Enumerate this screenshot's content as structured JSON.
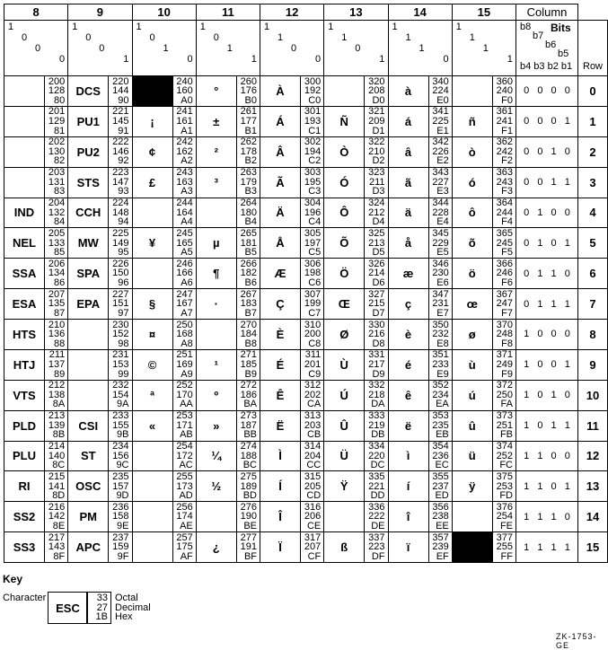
{
  "header": {
    "column_label": "Column",
    "bits_label": "Bits",
    "bit_names": [
      "b8",
      "b7",
      "b6",
      "b5"
    ],
    "low_bit_names": "b4 b3 b2 b1",
    "row_label": "Row"
  },
  "columns": [
    {
      "number": "8",
      "bits": [
        "1",
        "0",
        "0",
        "0"
      ],
      "cells": [
        {
          "c": "",
          "o": "200",
          "d": "128",
          "h": "80"
        },
        {
          "c": "",
          "o": "201",
          "d": "129",
          "h": "81"
        },
        {
          "c": "",
          "o": "202",
          "d": "130",
          "h": "82"
        },
        {
          "c": "",
          "o": "203",
          "d": "131",
          "h": "83"
        },
        {
          "c": "IND",
          "o": "204",
          "d": "132",
          "h": "84"
        },
        {
          "c": "NEL",
          "o": "205",
          "d": "133",
          "h": "85"
        },
        {
          "c": "SSA",
          "o": "206",
          "d": "134",
          "h": "86"
        },
        {
          "c": "ESA",
          "o": "207",
          "d": "135",
          "h": "87"
        },
        {
          "c": "HTS",
          "o": "210",
          "d": "136",
          "h": "88"
        },
        {
          "c": "HTJ",
          "o": "211",
          "d": "137",
          "h": "89"
        },
        {
          "c": "VTS",
          "o": "212",
          "d": "138",
          "h": "8A"
        },
        {
          "c": "PLD",
          "o": "213",
          "d": "139",
          "h": "8B"
        },
        {
          "c": "PLU",
          "o": "214",
          "d": "140",
          "h": "8C"
        },
        {
          "c": "RI",
          "o": "215",
          "d": "141",
          "h": "8D"
        },
        {
          "c": "SS2",
          "o": "216",
          "d": "142",
          "h": "8E"
        },
        {
          "c": "SS3",
          "o": "217",
          "d": "143",
          "h": "8F"
        }
      ]
    },
    {
      "number": "9",
      "bits": [
        "1",
        "0",
        "0",
        "1"
      ],
      "cells": [
        {
          "c": "DCS",
          "o": "220",
          "d": "144",
          "h": "90"
        },
        {
          "c": "PU1",
          "o": "221",
          "d": "145",
          "h": "91"
        },
        {
          "c": "PU2",
          "o": "222",
          "d": "146",
          "h": "92"
        },
        {
          "c": "STS",
          "o": "223",
          "d": "147",
          "h": "93"
        },
        {
          "c": "CCH",
          "o": "224",
          "d": "148",
          "h": "94"
        },
        {
          "c": "MW",
          "o": "225",
          "d": "149",
          "h": "95"
        },
        {
          "c": "SPA",
          "o": "226",
          "d": "150",
          "h": "96"
        },
        {
          "c": "EPA",
          "o": "227",
          "d": "151",
          "h": "97"
        },
        {
          "c": "",
          "o": "230",
          "d": "152",
          "h": "98"
        },
        {
          "c": "",
          "o": "231",
          "d": "153",
          "h": "99"
        },
        {
          "c": "",
          "o": "232",
          "d": "154",
          "h": "9A"
        },
        {
          "c": "CSI",
          "o": "233",
          "d": "155",
          "h": "9B"
        },
        {
          "c": "ST",
          "o": "234",
          "d": "156",
          "h": "9C"
        },
        {
          "c": "OSC",
          "o": "235",
          "d": "157",
          "h": "9D"
        },
        {
          "c": "PM",
          "o": "236",
          "d": "158",
          "h": "9E"
        },
        {
          "c": "APC",
          "o": "237",
          "d": "159",
          "h": "9F"
        }
      ]
    },
    {
      "number": "10",
      "bits": [
        "1",
        "0",
        "1",
        "0"
      ],
      "cells": [
        {
          "c": "",
          "o": "240",
          "d": "160",
          "h": "A0",
          "black": true
        },
        {
          "c": "¡",
          "o": "241",
          "d": "161",
          "h": "A1"
        },
        {
          "c": "¢",
          "o": "242",
          "d": "162",
          "h": "A2"
        },
        {
          "c": "£",
          "o": "243",
          "d": "163",
          "h": "A3"
        },
        {
          "c": "",
          "o": "244",
          "d": "164",
          "h": "A4"
        },
        {
          "c": "¥",
          "o": "245",
          "d": "165",
          "h": "A5"
        },
        {
          "c": "",
          "o": "246",
          "d": "166",
          "h": "A6"
        },
        {
          "c": "§",
          "o": "247",
          "d": "167",
          "h": "A7"
        },
        {
          "c": "¤",
          "o": "250",
          "d": "168",
          "h": "A8"
        },
        {
          "c": "©",
          "o": "251",
          "d": "169",
          "h": "A9"
        },
        {
          "c": "ª",
          "o": "252",
          "d": "170",
          "h": "AA"
        },
        {
          "c": "«",
          "o": "253",
          "d": "171",
          "h": "AB"
        },
        {
          "c": "",
          "o": "254",
          "d": "172",
          "h": "AC"
        },
        {
          "c": "",
          "o": "255",
          "d": "173",
          "h": "AD"
        },
        {
          "c": "",
          "o": "256",
          "d": "174",
          "h": "AE"
        },
        {
          "c": "",
          "o": "257",
          "d": "175",
          "h": "AF"
        }
      ]
    },
    {
      "number": "11",
      "bits": [
        "1",
        "0",
        "1",
        "1"
      ],
      "cells": [
        {
          "c": "°",
          "o": "260",
          "d": "176",
          "h": "B0"
        },
        {
          "c": "±",
          "o": "261",
          "d": "177",
          "h": "B1"
        },
        {
          "c": "²",
          "o": "262",
          "d": "178",
          "h": "B2"
        },
        {
          "c": "³",
          "o": "263",
          "d": "179",
          "h": "B3"
        },
        {
          "c": "",
          "o": "264",
          "d": "180",
          "h": "B4"
        },
        {
          "c": "µ",
          "o": "265",
          "d": "181",
          "h": "B5"
        },
        {
          "c": "¶",
          "o": "266",
          "d": "182",
          "h": "B6"
        },
        {
          "c": "·",
          "o": "267",
          "d": "183",
          "h": "B7"
        },
        {
          "c": "",
          "o": "270",
          "d": "184",
          "h": "B8"
        },
        {
          "c": "¹",
          "o": "271",
          "d": "185",
          "h": "B9"
        },
        {
          "c": "º",
          "o": "272",
          "d": "186",
          "h": "BA"
        },
        {
          "c": "»",
          "o": "273",
          "d": "187",
          "h": "BB"
        },
        {
          "c": "¼",
          "o": "274",
          "d": "188",
          "h": "BC"
        },
        {
          "c": "½",
          "o": "275",
          "d": "189",
          "h": "BD"
        },
        {
          "c": "",
          "o": "276",
          "d": "190",
          "h": "BE"
        },
        {
          "c": "¿",
          "o": "277",
          "d": "191",
          "h": "BF"
        }
      ]
    },
    {
      "number": "12",
      "bits": [
        "1",
        "1",
        "0",
        "0"
      ],
      "cells": [
        {
          "c": "À",
          "o": "300",
          "d": "192",
          "h": "C0"
        },
        {
          "c": "Á",
          "o": "301",
          "d": "193",
          "h": "C1"
        },
        {
          "c": "Â",
          "o": "302",
          "d": "194",
          "h": "C2"
        },
        {
          "c": "Ã",
          "o": "303",
          "d": "195",
          "h": "C3"
        },
        {
          "c": "Ä",
          "o": "304",
          "d": "196",
          "h": "C4"
        },
        {
          "c": "Å",
          "o": "305",
          "d": "197",
          "h": "C5"
        },
        {
          "c": "Æ",
          "o": "306",
          "d": "198",
          "h": "C6"
        },
        {
          "c": "Ç",
          "o": "307",
          "d": "199",
          "h": "C7"
        },
        {
          "c": "È",
          "o": "310",
          "d": "200",
          "h": "C8"
        },
        {
          "c": "É",
          "o": "311",
          "d": "201",
          "h": "C9"
        },
        {
          "c": "Ê",
          "o": "312",
          "d": "202",
          "h": "CA"
        },
        {
          "c": "Ë",
          "o": "313",
          "d": "203",
          "h": "CB"
        },
        {
          "c": "Ì",
          "o": "314",
          "d": "204",
          "h": "CC"
        },
        {
          "c": "Í",
          "o": "315",
          "d": "205",
          "h": "CD"
        },
        {
          "c": "Î",
          "o": "316",
          "d": "206",
          "h": "CE"
        },
        {
          "c": "Ï",
          "o": "317",
          "d": "207",
          "h": "CF"
        }
      ]
    },
    {
      "number": "13",
      "bits": [
        "1",
        "1",
        "0",
        "1"
      ],
      "cells": [
        {
          "c": "",
          "o": "320",
          "d": "208",
          "h": "D0"
        },
        {
          "c": "Ñ",
          "o": "321",
          "d": "209",
          "h": "D1"
        },
        {
          "c": "Ò",
          "o": "322",
          "d": "210",
          "h": "D2"
        },
        {
          "c": "Ó",
          "o": "323",
          "d": "211",
          "h": "D3"
        },
        {
          "c": "Ô",
          "o": "324",
          "d": "212",
          "h": "D4"
        },
        {
          "c": "Õ",
          "o": "325",
          "d": "213",
          "h": "D5"
        },
        {
          "c": "Ö",
          "o": "326",
          "d": "214",
          "h": "D6"
        },
        {
          "c": "Œ",
          "o": "327",
          "d": "215",
          "h": "D7"
        },
        {
          "c": "Ø",
          "o": "330",
          "d": "216",
          "h": "D8"
        },
        {
          "c": "Ù",
          "o": "331",
          "d": "217",
          "h": "D9"
        },
        {
          "c": "Ú",
          "o": "332",
          "d": "218",
          "h": "DA"
        },
        {
          "c": "Û",
          "o": "333",
          "d": "219",
          "h": "DB"
        },
        {
          "c": "Ü",
          "o": "334",
          "d": "220",
          "h": "DC"
        },
        {
          "c": "Ÿ",
          "o": "335",
          "d": "221",
          "h": "DD"
        },
        {
          "c": "",
          "o": "336",
          "d": "222",
          "h": "DE"
        },
        {
          "c": "ß",
          "o": "337",
          "d": "223",
          "h": "DF"
        }
      ]
    },
    {
      "number": "14",
      "bits": [
        "1",
        "1",
        "1",
        "0"
      ],
      "cells": [
        {
          "c": "à",
          "o": "340",
          "d": "224",
          "h": "E0"
        },
        {
          "c": "á",
          "o": "341",
          "d": "225",
          "h": "E1"
        },
        {
          "c": "â",
          "o": "342",
          "d": "226",
          "h": "E2"
        },
        {
          "c": "ã",
          "o": "343",
          "d": "227",
          "h": "E3"
        },
        {
          "c": "ä",
          "o": "344",
          "d": "228",
          "h": "E4"
        },
        {
          "c": "å",
          "o": "345",
          "d": "229",
          "h": "E5"
        },
        {
          "c": "æ",
          "o": "346",
          "d": "230",
          "h": "E6"
        },
        {
          "c": "ç",
          "o": "347",
          "d": "231",
          "h": "E7"
        },
        {
          "c": "è",
          "o": "350",
          "d": "232",
          "h": "E8"
        },
        {
          "c": "é",
          "o": "351",
          "d": "233",
          "h": "E9"
        },
        {
          "c": "ê",
          "o": "352",
          "d": "234",
          "h": "EA"
        },
        {
          "c": "ë",
          "o": "353",
          "d": "235",
          "h": "EB"
        },
        {
          "c": "ì",
          "o": "354",
          "d": "236",
          "h": "EC"
        },
        {
          "c": "í",
          "o": "355",
          "d": "237",
          "h": "ED"
        },
        {
          "c": "î",
          "o": "356",
          "d": "238",
          "h": "EE"
        },
        {
          "c": "ï",
          "o": "357",
          "d": "239",
          "h": "EF"
        }
      ]
    },
    {
      "number": "15",
      "bits": [
        "1",
        "1",
        "1",
        "1"
      ],
      "cells": [
        {
          "c": "",
          "o": "360",
          "d": "240",
          "h": "F0"
        },
        {
          "c": "ñ",
          "o": "361",
          "d": "241",
          "h": "F1"
        },
        {
          "c": "ò",
          "o": "362",
          "d": "242",
          "h": "F2"
        },
        {
          "c": "ó",
          "o": "363",
          "d": "243",
          "h": "F3"
        },
        {
          "c": "ô",
          "o": "364",
          "d": "244",
          "h": "F4"
        },
        {
          "c": "õ",
          "o": "365",
          "d": "245",
          "h": "F5"
        },
        {
          "c": "ö",
          "o": "366",
          "d": "246",
          "h": "F6"
        },
        {
          "c": "œ",
          "o": "367",
          "d": "247",
          "h": "F7"
        },
        {
          "c": "ø",
          "o": "370",
          "d": "248",
          "h": "F8"
        },
        {
          "c": "ù",
          "o": "371",
          "d": "249",
          "h": "F9"
        },
        {
          "c": "ú",
          "o": "372",
          "d": "250",
          "h": "FA"
        },
        {
          "c": "û",
          "o": "373",
          "d": "251",
          "h": "FB"
        },
        {
          "c": "ü",
          "o": "374",
          "d": "252",
          "h": "FC"
        },
        {
          "c": "ÿ",
          "o": "375",
          "d": "253",
          "h": "FD"
        },
        {
          "c": "",
          "o": "376",
          "d": "254",
          "h": "FE"
        },
        {
          "c": "",
          "o": "377",
          "d": "255",
          "h": "FF",
          "black": true
        }
      ]
    }
  ],
  "rows": [
    {
      "bits": "0 0 0 0",
      "row": "0"
    },
    {
      "bits": "0 0 0 1",
      "row": "1"
    },
    {
      "bits": "0 0 1 0",
      "row": "2"
    },
    {
      "bits": "0 0 1 1",
      "row": "3"
    },
    {
      "bits": "0 1 0 0",
      "row": "4"
    },
    {
      "bits": "0 1 0 1",
      "row": "5"
    },
    {
      "bits": "0 1 1 0",
      "row": "6"
    },
    {
      "bits": "0 1 1 1",
      "row": "7"
    },
    {
      "bits": "1 0 0 0",
      "row": "8"
    },
    {
      "bits": "1 0 0 1",
      "row": "9"
    },
    {
      "bits": "1 0 1 0",
      "row": "10"
    },
    {
      "bits": "1 0 1 1",
      "row": "11"
    },
    {
      "bits": "1 1 0 0",
      "row": "12"
    },
    {
      "bits": "1 1 0 1",
      "row": "13"
    },
    {
      "bits": "1 1 1 0",
      "row": "14"
    },
    {
      "bits": "1 1 1 1",
      "row": "15"
    }
  ],
  "key": {
    "title": "Key",
    "character_label": "Character",
    "example_char": "ESC",
    "example_octal": "33",
    "example_decimal": "27",
    "example_hex": "1B",
    "octal_label": "Octal",
    "decimal_label": "Decimal",
    "hex_label": "Hex"
  },
  "figure_id": "ZK-1753-GE"
}
